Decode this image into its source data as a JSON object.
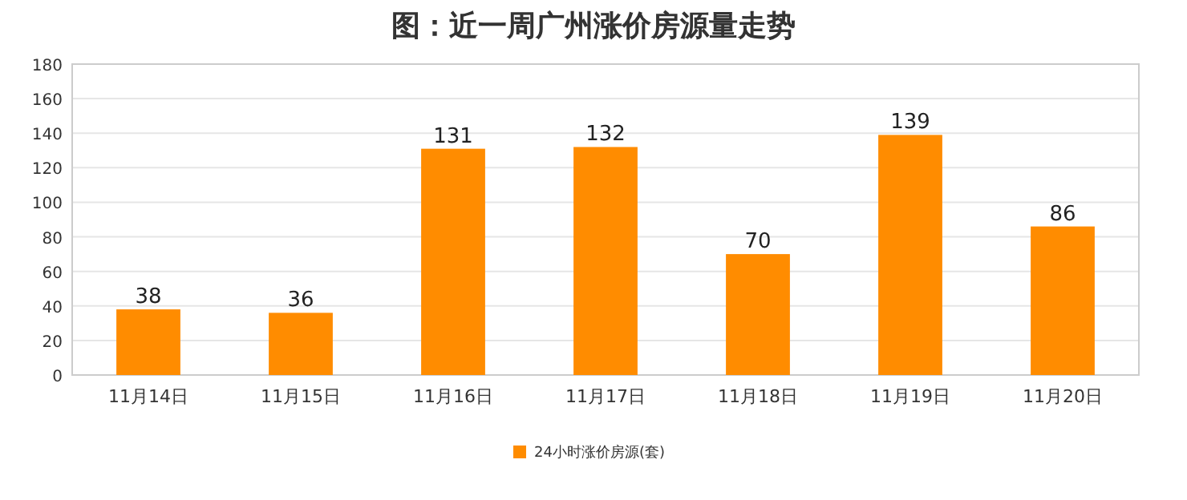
{
  "chart_data": {
    "type": "bar",
    "title": "图：近一周广州涨价房源量走势",
    "categories": [
      "11月14日",
      "11月15日",
      "11月16日",
      "11月17日",
      "11月18日",
      "11月19日",
      "11月20日"
    ],
    "series": [
      {
        "name": "24小时涨价房源(套)",
        "color": "#ff8c00",
        "values": [
          38,
          36,
          131,
          132,
          70,
          139,
          86
        ]
      }
    ],
    "ylim": [
      0,
      180
    ],
    "yticks": [
      0,
      20,
      40,
      60,
      80,
      100,
      120,
      140,
      160,
      180
    ],
    "grid": "y",
    "legend": "bottom",
    "data_labels": true
  }
}
